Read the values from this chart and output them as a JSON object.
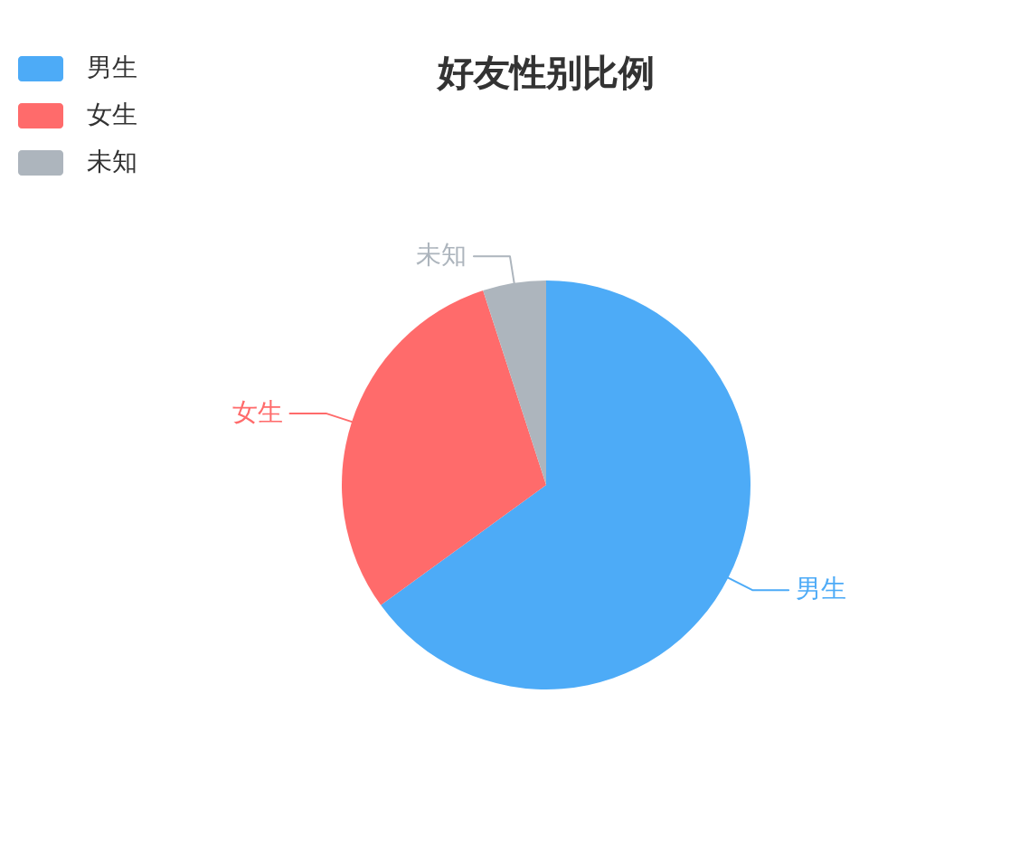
{
  "chart_data": {
    "type": "pie",
    "title": "好友性别比例",
    "categories": [
      "男生",
      "女生",
      "未知"
    ],
    "values": [
      65,
      30,
      5
    ],
    "colors": [
      "#4dabf7",
      "#ff6b6b",
      "#adb5bd"
    ],
    "legend": "top left"
  }
}
